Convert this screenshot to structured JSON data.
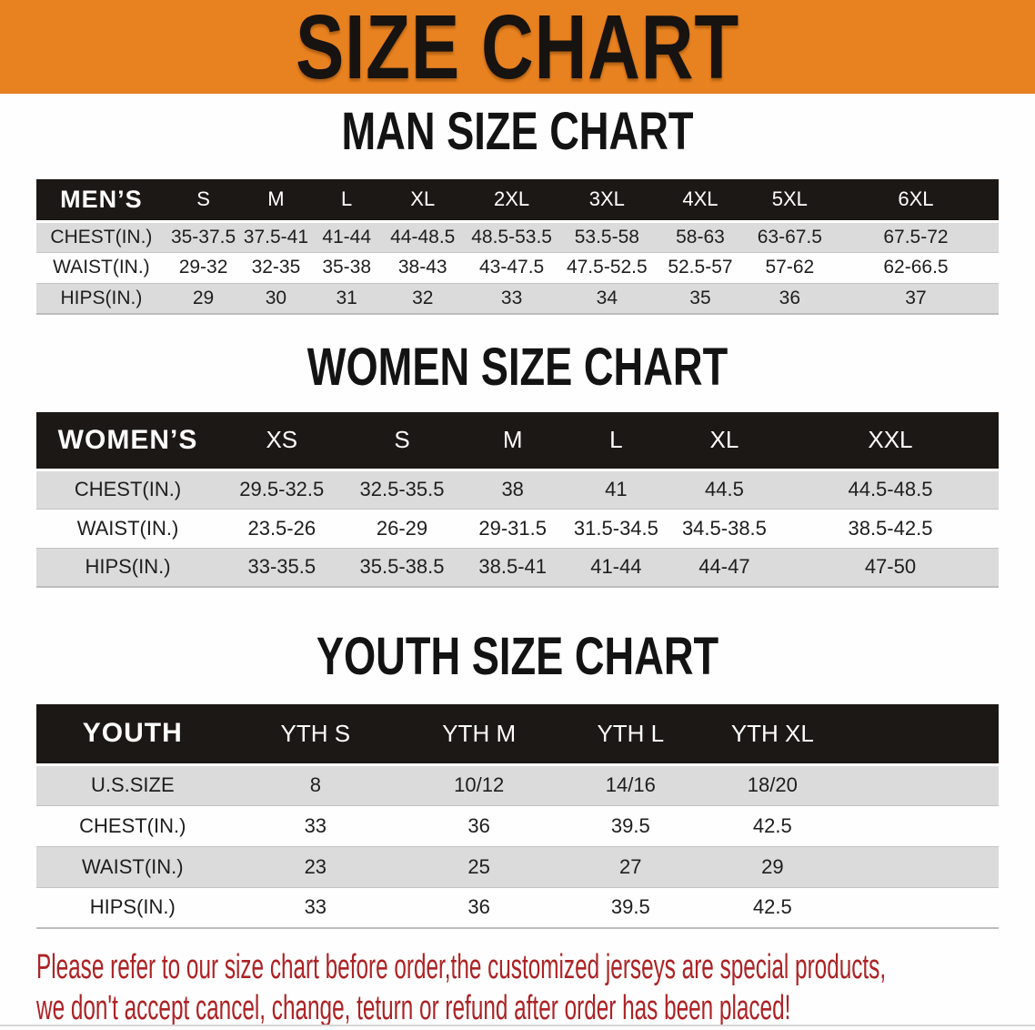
{
  "banner": {
    "title": "SIZE CHART"
  },
  "colors": {
    "banner_bg": "#E8811F",
    "banner_text": "#171310",
    "table_header_bg": "#1C1815",
    "table_header_text": "#FFFFFF",
    "row_alt_bg": "#DBDBDB",
    "body_text": "#1E1E1E",
    "note_text": "#AD2225"
  },
  "tables": {
    "men": {
      "heading": "MAN SIZE CHART",
      "label": "MEN’S",
      "columns": [
        "S",
        "M",
        "L",
        "XL",
        "2XL",
        "3XL",
        "4XL",
        "5XL",
        "6XL"
      ],
      "rows": [
        {
          "label": "CHEST(IN.)",
          "values": [
            "35-37.5",
            "37.5-41",
            "41-44",
            "44-48.5",
            "48.5-53.5",
            "53.5-58",
            "58-63",
            "63-67.5",
            "67.5-72"
          ]
        },
        {
          "label": "WAIST(IN.)",
          "values": [
            "29-32",
            "32-35",
            "35-38",
            "38-43",
            "43-47.5",
            "47.5-52.5",
            "52.5-57",
            "57-62",
            "62-66.5"
          ]
        },
        {
          "label": "HIPS(IN.)",
          "values": [
            "29",
            "30",
            "31",
            "32",
            "33",
            "34",
            "35",
            "36",
            "37"
          ]
        }
      ]
    },
    "women": {
      "heading": "WOMEN SIZE CHART",
      "label": "WOMEN’S",
      "columns": [
        "XS",
        "S",
        "M",
        "L",
        "XL",
        "XXL"
      ],
      "rows": [
        {
          "label": "CHEST(IN.)",
          "values": [
            "29.5-32.5",
            "32.5-35.5",
            "38",
            "41",
            "44.5",
            "44.5-48.5"
          ]
        },
        {
          "label": "WAIST(IN.)",
          "values": [
            "23.5-26",
            "26-29",
            "29-31.5",
            "31.5-34.5",
            "34.5-38.5",
            "38.5-42.5"
          ]
        },
        {
          "label": "HIPS(IN.)",
          "values": [
            "33-35.5",
            "35.5-38.5",
            "38.5-41",
            "41-44",
            "44-47",
            "47-50"
          ]
        }
      ]
    },
    "youth": {
      "heading": "YOUTH SIZE CHART",
      "label": "YOUTH",
      "columns": [
        "YTH S",
        "YTH M",
        "YTH L",
        "YTH XL"
      ],
      "rows": [
        {
          "label": "U.S.SIZE",
          "values": [
            "8",
            "10/12",
            "14/16",
            "18/20"
          ]
        },
        {
          "label": "CHEST(IN.)",
          "values": [
            "33",
            "36",
            "39.5",
            "42.5"
          ]
        },
        {
          "label": "WAIST(IN.)",
          "values": [
            "23",
            "25",
            "27",
            "29"
          ]
        },
        {
          "label": "HIPS(IN.)",
          "values": [
            "33",
            "36",
            "39.5",
            "42.5"
          ]
        }
      ]
    }
  },
  "note": {
    "line1": "Please refer to our size chart before order,the customized jerseys are special products,",
    "line2": "we don't accept cancel, change, teturn or refund after order has been placed!"
  }
}
